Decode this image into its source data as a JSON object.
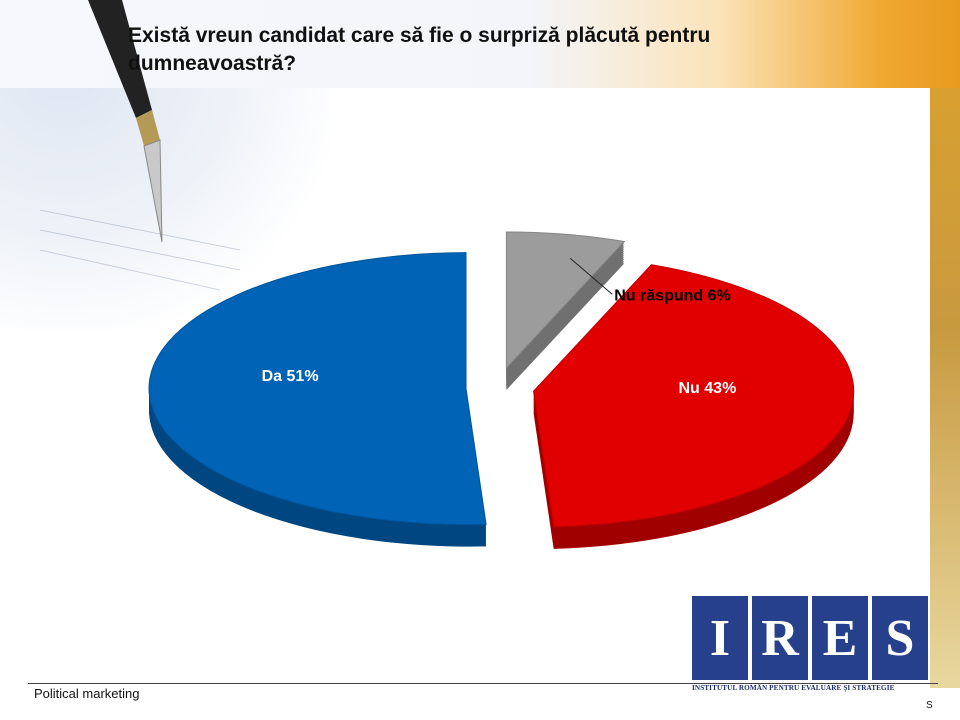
{
  "title": "Există vreun candidat care să fie o surpriză plăcută pentru dumneavoastră?",
  "chart_data": {
    "type": "pie",
    "title": "Există vreun candidat care să fie o surpriză plăcută pentru dumneavoastră?",
    "slices": [
      {
        "label": "Da 51%",
        "category": "Da",
        "value": 51,
        "color": "#0063b5"
      },
      {
        "label": "Nu 43%",
        "category": "Nu",
        "value": 43,
        "color": "#e00000"
      },
      {
        "label": "Nu răspund 6%",
        "category": "Nu răspund",
        "value": 6,
        "color": "#9c9c9c"
      }
    ]
  },
  "logo": {
    "letters": [
      "I",
      "R",
      "E",
      "S"
    ],
    "subtitle": "INSTITUTUL ROMÂN PENTRU EVALUARE ȘI STRATEGIE",
    "color": "#26408b"
  },
  "footer": {
    "text": "Political marketing",
    "corner_letter": "S"
  }
}
